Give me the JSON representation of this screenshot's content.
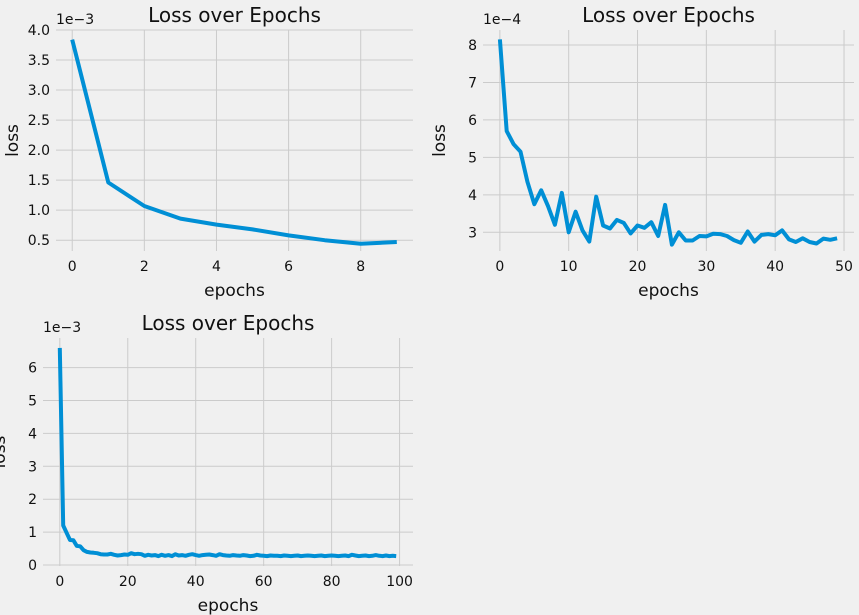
{
  "chart_data": [
    {
      "type": "line",
      "title": "Loss over Epochs",
      "xlabel": "epochs",
      "ylabel": "loss",
      "y_offset_label": "1e−3",
      "grid": true,
      "series_color": "#008fd5",
      "xlim": [
        -0.45,
        9.45
      ],
      "ylim": [
        0.00032,
        0.004
      ],
      "x_ticks": [
        0,
        2,
        4,
        6,
        8
      ],
      "x_tick_labels": [
        "0",
        "2",
        "4",
        "6",
        "8"
      ],
      "y_ticks": [
        0.0005,
        0.001,
        0.0015,
        0.002,
        0.0025,
        0.003,
        0.0035,
        0.004
      ],
      "y_tick_labels": [
        "0.5",
        "1.0",
        "1.5",
        "2.0",
        "2.5",
        "3.0",
        "3.5",
        "4.0"
      ],
      "x": [
        0,
        1,
        2,
        3,
        4,
        5,
        6,
        7,
        8,
        9
      ],
      "y": [
        0.00384,
        0.00146,
        0.00107,
        0.00086,
        0.00076,
        0.00068,
        0.00058,
        0.0005,
        0.00044,
        0.00047
      ]
    },
    {
      "type": "line",
      "title": "Loss over Epochs",
      "xlabel": "epochs",
      "ylabel": "loss",
      "y_offset_label": "1e−4",
      "grid": true,
      "series_color": "#008fd5",
      "xlim": [
        -2.45,
        51.45
      ],
      "ylim": [
        0.00025,
        0.00084
      ],
      "x_ticks": [
        0,
        10,
        20,
        30,
        40,
        50
      ],
      "x_tick_labels": [
        "0",
        "10",
        "20",
        "30",
        "40",
        "50"
      ],
      "y_ticks": [
        0.0003,
        0.0004,
        0.0005,
        0.0006,
        0.0007,
        0.0008
      ],
      "y_tick_labels": [
        "3",
        "4",
        "5",
        "6",
        "7",
        "8"
      ],
      "x": [
        0,
        1,
        2,
        3,
        4,
        5,
        6,
        7,
        8,
        9,
        10,
        11,
        12,
        13,
        14,
        15,
        16,
        17,
        18,
        19,
        20,
        21,
        22,
        23,
        24,
        25,
        26,
        27,
        28,
        29,
        30,
        31,
        32,
        33,
        34,
        35,
        36,
        37,
        38,
        39,
        40,
        41,
        42,
        43,
        44,
        45,
        46,
        47,
        48,
        49
      ],
      "y": [
        0.000815,
        0.00057,
        0.000535,
        0.000515,
        0.000435,
        0.000375,
        0.000412,
        0.00037,
        0.00032,
        0.000405,
        0.0003,
        0.000355,
        0.000305,
        0.000275,
        0.000395,
        0.000318,
        0.00031,
        0.000333,
        0.000325,
        0.000297,
        0.000318,
        0.000312,
        0.000327,
        0.00029,
        0.000373,
        0.000267,
        0.0003,
        0.000278,
        0.000278,
        0.00029,
        0.000289,
        0.000296,
        0.000295,
        0.00029,
        0.000279,
        0.000272,
        0.000302,
        0.000275,
        0.000293,
        0.000295,
        0.000292,
        0.000305,
        0.000281,
        0.000274,
        0.000284,
        0.000274,
        0.00027,
        0.000283,
        0.00028,
        0.000284
      ]
    },
    {
      "type": "line",
      "title": "Loss over Epochs",
      "xlabel": "epochs",
      "ylabel": "loss",
      "y_offset_label": "1e−3",
      "grid": true,
      "series_color": "#008fd5",
      "xlim": [
        -4.95,
        103.95
      ],
      "ylim": [
        -3e-05,
        0.0069
      ],
      "x_ticks": [
        0,
        20,
        40,
        60,
        80,
        100
      ],
      "x_tick_labels": [
        "0",
        "20",
        "40",
        "60",
        "80",
        "100"
      ],
      "y_ticks": [
        0,
        0.001,
        0.002,
        0.003,
        0.004,
        0.005,
        0.006
      ],
      "y_tick_labels": [
        "0",
        "1",
        "2",
        "3",
        "4",
        "5",
        "6"
      ],
      "x": [
        0,
        1,
        2,
        3,
        4,
        5,
        6,
        7,
        8,
        9,
        10,
        11,
        12,
        13,
        14,
        15,
        16,
        17,
        18,
        19,
        20,
        21,
        22,
        23,
        24,
        25,
        26,
        27,
        28,
        29,
        30,
        31,
        32,
        33,
        34,
        35,
        36,
        37,
        38,
        39,
        40,
        41,
        42,
        43,
        44,
        45,
        46,
        47,
        48,
        49,
        50,
        51,
        52,
        53,
        54,
        55,
        56,
        57,
        58,
        59,
        60,
        61,
        62,
        63,
        64,
        65,
        66,
        67,
        68,
        69,
        70,
        71,
        72,
        73,
        74,
        75,
        76,
        77,
        78,
        79,
        80,
        81,
        82,
        83,
        84,
        85,
        86,
        87,
        88,
        89,
        90,
        91,
        92,
        93,
        94,
        95,
        96,
        97,
        98,
        99
      ],
      "y": [
        0.0066,
        0.0012,
        0.00098,
        0.00076,
        0.00075,
        0.00058,
        0.00057,
        0.00045,
        0.0004,
        0.00038,
        0.00037,
        0.00036,
        0.00033,
        0.00032,
        0.00032,
        0.00034,
        0.00031,
        0.00029,
        0.0003,
        0.00032,
        0.00031,
        0.00036,
        0.00033,
        0.00034,
        0.00033,
        0.00028,
        0.00031,
        0.00029,
        0.0003,
        0.00027,
        0.00031,
        0.00028,
        0.0003,
        0.00027,
        0.00033,
        0.00029,
        0.0003,
        0.00028,
        0.00031,
        0.00033,
        0.0003,
        0.00028,
        0.0003,
        0.00031,
        0.00032,
        0.0003,
        0.00028,
        0.00033,
        0.0003,
        0.00029,
        0.00028,
        0.0003,
        0.00029,
        0.00028,
        0.0003,
        0.00029,
        0.00027,
        0.00028,
        0.00031,
        0.00029,
        0.00028,
        0.00027,
        0.00029,
        0.00028,
        0.00028,
        0.00027,
        0.00029,
        0.00028,
        0.00027,
        0.00028,
        0.00029,
        0.00027,
        0.00028,
        0.00029,
        0.00028,
        0.00027,
        0.00028,
        0.00029,
        0.00027,
        0.00028,
        0.00029,
        0.00028,
        0.00027,
        0.00028,
        0.00029,
        0.00027,
        0.00031,
        0.00029,
        0.00027,
        0.00028,
        0.00029,
        0.00027,
        0.00028,
        0.0003,
        0.00028,
        0.00027,
        0.00029,
        0.00027,
        0.00028,
        0.00027
      ]
    }
  ]
}
